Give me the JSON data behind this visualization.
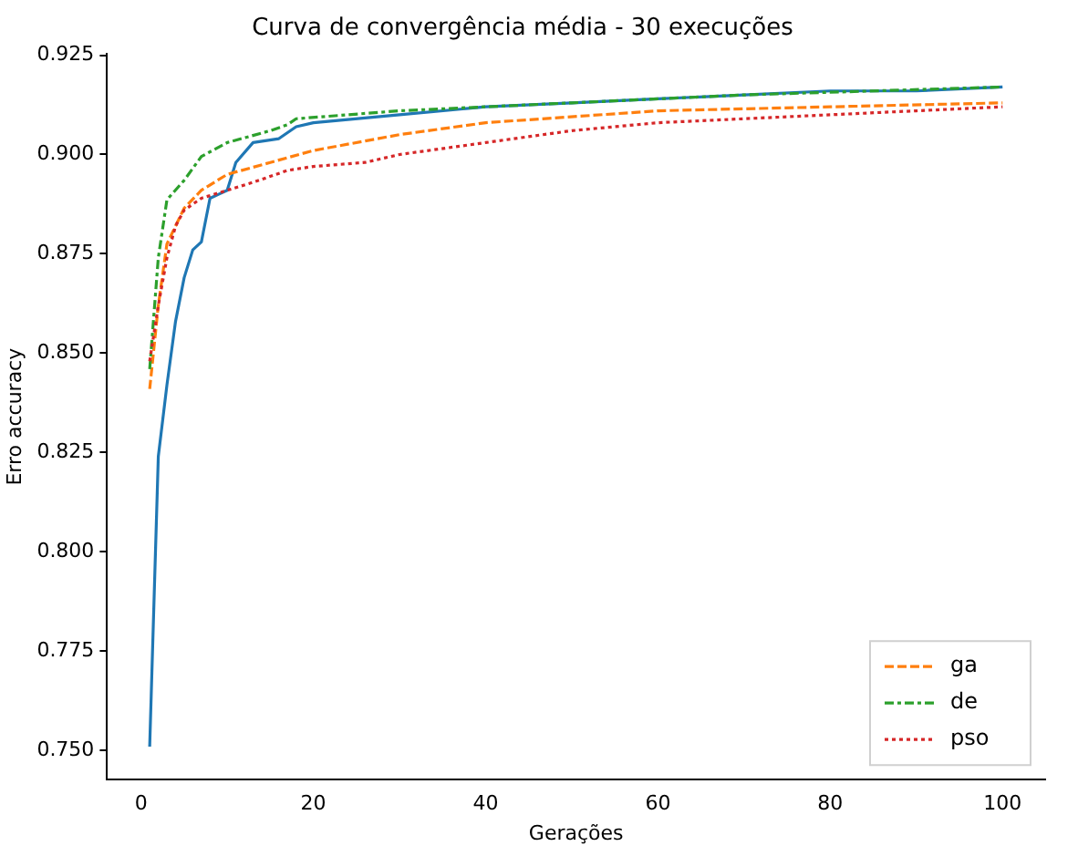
{
  "chart_data": {
    "type": "line",
    "title": "Curva de convergência média - 30 execuções",
    "xlabel": "Gerações",
    "ylabel": "Erro accuracy",
    "xlim": [
      -3.95,
      104.95
    ],
    "xticks": [
      0,
      20,
      40,
      60,
      80,
      100
    ],
    "ylim": [
      0.7427,
      0.9253
    ],
    "yticks": [
      {
        "value": 0.75,
        "label": "0.750"
      },
      0.775,
      {
        "value": 0.8,
        "label": "0.800"
      },
      0.825,
      {
        "value": 0.85,
        "label": "0.850"
      },
      0.875,
      {
        "value": 0.9,
        "label": "0.900"
      },
      0.925
    ],
    "grid": false,
    "legend": "bottom right",
    "marker": "none",
    "series": [
      {
        "color": "#1f77b4",
        "line_style": "solid",
        "x": [
          1,
          2,
          3,
          4,
          5,
          6,
          7,
          8,
          9,
          10,
          11,
          13,
          16,
          18,
          20,
          30,
          40,
          50,
          60,
          70,
          80,
          90,
          100
        ],
        "values": [
          0.751,
          0.824,
          0.842,
          0.858,
          0.869,
          0.876,
          0.878,
          0.889,
          0.89,
          0.891,
          0.898,
          0.903,
          0.904,
          0.907,
          0.908,
          0.91,
          0.912,
          0.913,
          0.914,
          0.915,
          0.916,
          0.916,
          0.917
        ]
      },
      {
        "name": "ga",
        "color": "#ff7f0e",
        "line_style": "dashed",
        "x": [
          1,
          2,
          3,
          5,
          7,
          10,
          15,
          20,
          30,
          40,
          60,
          80,
          100
        ],
        "values": [
          0.841,
          0.862,
          0.8775,
          0.8865,
          0.891,
          0.895,
          0.898,
          0.901,
          0.905,
          0.908,
          0.911,
          0.912,
          0.913
        ]
      },
      {
        "name": "de",
        "color": "#2ca02c",
        "line_style": "dashdot",
        "x": [
          1,
          2,
          3,
          5,
          7,
          10,
          15,
          17,
          18,
          30,
          50,
          70,
          100
        ],
        "values": [
          0.846,
          0.874,
          0.8886,
          0.8935,
          0.8995,
          0.903,
          0.906,
          0.9075,
          0.909,
          0.911,
          0.913,
          0.915,
          0.917
        ]
      },
      {
        "name": "pso",
        "color": "#d62728",
        "line_style": "dotted",
        "x": [
          1,
          2,
          3,
          4,
          5,
          7,
          10,
          13,
          17,
          20,
          26,
          30,
          40,
          50,
          60,
          70,
          80,
          90,
          100
        ],
        "values": [
          0.848,
          0.862,
          0.874,
          0.882,
          0.886,
          0.889,
          0.891,
          0.893,
          0.896,
          0.897,
          0.898,
          0.9,
          0.903,
          0.906,
          0.908,
          0.909,
          0.91,
          0.911,
          0.912
        ]
      }
    ]
  }
}
